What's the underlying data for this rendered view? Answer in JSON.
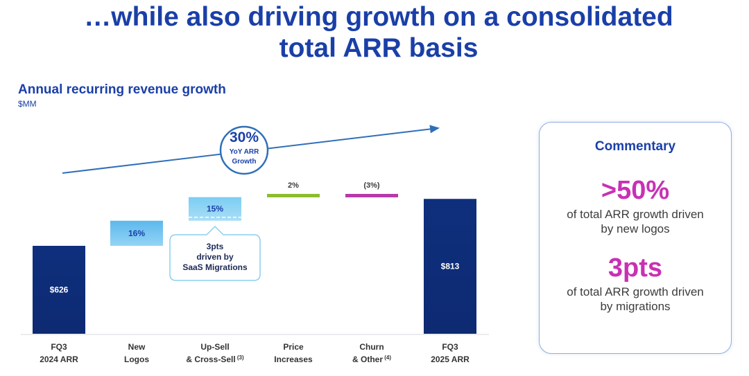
{
  "slide": {
    "title_line1": "…while also driving growth on a consolidated",
    "title_line2": "total ARR basis"
  },
  "chart_data": {
    "type": "bar",
    "subtype": "waterfall",
    "title": "Annual recurring revenue growth",
    "ylabel": "$MM",
    "categories": [
      [
        "FQ3",
        "2024 ARR"
      ],
      [
        "New",
        "Logos"
      ],
      [
        "Up-Sell",
        "& Cross-Sell",
        "(3)"
      ],
      [
        "Price",
        "Increases"
      ],
      [
        "Churn",
        "& Other",
        "(4)"
      ],
      [
        "FQ3",
        "2025 ARR"
      ]
    ],
    "bars": [
      {
        "kind": "total",
        "start": 0,
        "end": 626,
        "label": "$626",
        "color": "#0f2f7d"
      },
      {
        "kind": "increment",
        "start": 626,
        "end": 726,
        "label": "16%",
        "color": "#6fc3ec"
      },
      {
        "kind": "increment",
        "start": 726,
        "end": 820,
        "label": "15%",
        "color": "#8cd4f4"
      },
      {
        "kind": "increment",
        "start": 820,
        "end": 833,
        "label": "2%",
        "color": "#8dbd2f"
      },
      {
        "kind": "decrement",
        "start": 833,
        "end": 813,
        "label": "(3%)",
        "color": "#b63aa9"
      },
      {
        "kind": "total",
        "start": 0,
        "end": 813,
        "label": "$813",
        "color": "#0f2f7d"
      }
    ],
    "annotation": {
      "value": "30%",
      "line1": "YoY ARR",
      "line2": "Growth"
    },
    "callout": {
      "line1": "3pts",
      "line2": "driven by",
      "line3": "SaaS Migrations"
    }
  },
  "commentary": {
    "heading": "Commentary",
    "items": [
      {
        "value": ">50%",
        "line1": "of total ARR growth driven",
        "line2": "by new logos"
      },
      {
        "value": "3pts",
        "line1": "of total ARR growth driven",
        "line2": "by migrations"
      }
    ]
  }
}
